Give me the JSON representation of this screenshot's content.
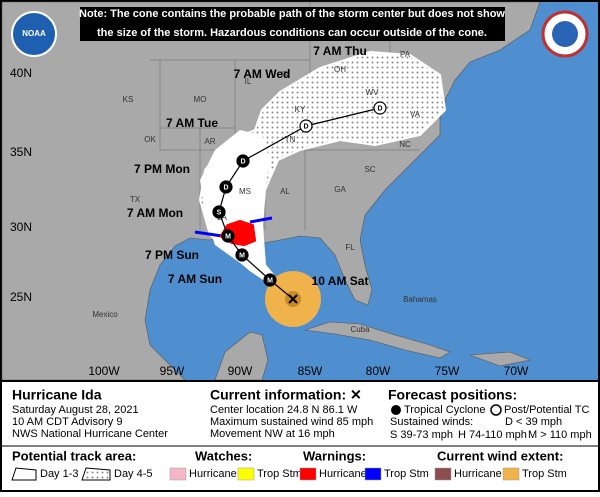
{
  "header": {
    "note": [
      "Note: The cone contains the probable path of the storm center but does not show",
      "the size of the storm. Hazardous conditions can occur outside of the cone."
    ],
    "logo": "NOAA"
  },
  "map": {
    "latitude_labels": [
      "40N",
      "35N",
      "30N",
      "25N"
    ],
    "longitude_labels": [
      "100W",
      "95W",
      "90W",
      "85W",
      "80W",
      "75W",
      "70W"
    ],
    "region_labels": [
      "KS",
      "MO",
      "IL",
      "IN",
      "OH",
      "PA",
      "WV",
      "VA",
      "KY",
      "TN",
      "NC",
      "SC",
      "GA",
      "AL",
      "MS",
      "AR",
      "OK",
      "TX",
      "LA",
      "FL",
      "Mexico",
      "Cuba",
      "Bahamas"
    ],
    "forecast_times": [
      "7 AM Thu",
      "7 AM Wed",
      "7 AM Tue",
      "7 PM Mon",
      "7 AM Mon",
      "7 PM Sun",
      "7 AM Sun",
      "10 AM Sat"
    ],
    "position_markers": [
      "D",
      "D",
      "D",
      "D",
      "S",
      "M",
      "M",
      "M"
    ]
  },
  "info": {
    "storm_name": "Hurricane Ida",
    "date": "Saturday August 28, 2021",
    "advisory": "10 AM CDT Advisory 9",
    "office": "NWS National Hurricane Center"
  },
  "current_information": {
    "title": "Current information: ✕",
    "lines": [
      "Center location 24.8 N 86.1 W",
      "Maximum sustained wind 85 mph",
      "Movement NW at 16 mph"
    ]
  },
  "forecast_positions": {
    "title": "Forecast positions:",
    "tropical_cyclone": "Tropical Cyclone",
    "post_tc": "Post/Potential TC",
    "sustained_winds": "Sustained winds:",
    "d": "D < 39 mph",
    "s": "S 39-73 mph",
    "h": "H 74-110 mph",
    "m": "M > 110 mph"
  },
  "legend": {
    "track_area": {
      "title": "Potential track area:",
      "day13": "Day 1-3",
      "day45": "Day 4-5"
    },
    "watches": {
      "title": "Watches:",
      "hurricane": "Hurricane",
      "trop_stm": "Trop Stm"
    },
    "warnings": {
      "title": "Warnings:",
      "hurricane": "Hurricane",
      "trop_stm": "Trop Stm"
    },
    "wind_extent": {
      "title": "Current wind extent:",
      "hurricane": "Hurricane",
      "trop_stm": "Trop Stm"
    }
  }
}
